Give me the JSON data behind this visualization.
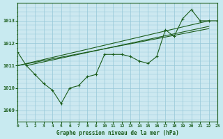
{
  "title": "Graphe pression niveau de la mer (hPa)",
  "bg_color": "#c8eaf0",
  "plot_bg_color": "#cce8f0",
  "grid_color": "#96c8d8",
  "line_color": "#1a5c1a",
  "xlim": [
    0,
    23
  ],
  "ylim": [
    1008.5,
    1013.8
  ],
  "yticks": [
    1009,
    1010,
    1011,
    1012,
    1013
  ],
  "xticks": [
    0,
    1,
    2,
    3,
    4,
    5,
    6,
    7,
    8,
    9,
    10,
    11,
    12,
    13,
    14,
    15,
    16,
    17,
    18,
    19,
    20,
    21,
    22,
    23
  ],
  "series1_x": [
    0,
    1,
    2,
    3,
    4,
    5,
    6,
    7,
    8,
    9,
    10,
    11,
    12,
    13,
    14,
    15,
    16,
    17,
    18,
    19,
    20,
    21,
    22,
    23
  ],
  "series1_y": [
    1011.6,
    1011.0,
    1010.6,
    1010.2,
    1009.9,
    1009.3,
    1010.0,
    1010.1,
    1010.5,
    1010.6,
    1011.5,
    1011.5,
    1011.5,
    1011.4,
    1011.2,
    1011.1,
    1011.4,
    1012.6,
    1012.3,
    1013.1,
    1013.5,
    1013.0,
    1013.0,
    1013.0
  ],
  "trend1_x": [
    0,
    22
  ],
  "trend1_y": [
    1011.0,
    1013.0
  ],
  "trend2_x": [
    0,
    22
  ],
  "trend2_y": [
    1011.0,
    1012.65
  ],
  "trend3_x": [
    1,
    22
  ],
  "trend3_y": [
    1011.0,
    1012.75
  ]
}
